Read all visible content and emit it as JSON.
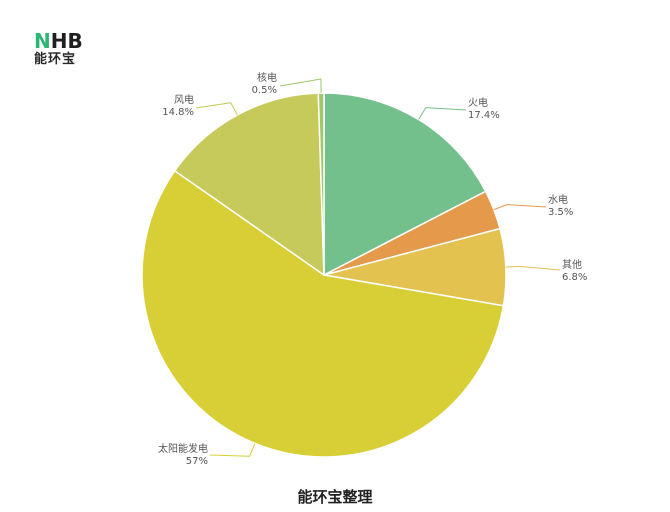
{
  "brand": {
    "logo_prefix": "N",
    "logo_rest": "HB",
    "logo_sub": "能环宝",
    "accent_color": "#2bb673"
  },
  "caption": "能环宝整理",
  "chart_data": {
    "type": "pie",
    "title": "",
    "slices": [
      {
        "name": "火电",
        "label": "17.4%",
        "value": 17.4,
        "color": "#74c08c"
      },
      {
        "name": "水电",
        "label": "3.5%",
        "value": 3.5,
        "color": "#e59a4b"
      },
      {
        "name": "其他",
        "label": "6.8%",
        "value": 6.8,
        "color": "#e3c24f"
      },
      {
        "name": "太阳能发电",
        "label": "57%",
        "value": 57,
        "color": "#d8ce35"
      },
      {
        "name": "风电",
        "label": "14.8%",
        "value": 14.8,
        "color": "#c6ca5b"
      },
      {
        "name": "核电",
        "label": "0.5%",
        "value": 0.5,
        "color": "#9fc76e"
      }
    ],
    "start_angle_deg": 0,
    "direction": "clockwise",
    "legend": "none"
  }
}
